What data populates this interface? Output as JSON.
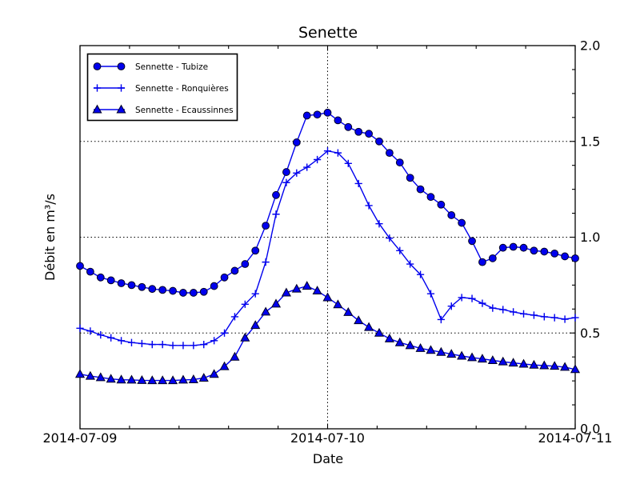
{
  "figure": {
    "background": "#ffffff",
    "colors": {
      "line": "#0000ee",
      "marker_edge": "#000022",
      "axis": "#000000",
      "grid": "#000000",
      "text": "#000000",
      "legend_bg": "#ffffff",
      "legend_border": "#000000"
    }
  },
  "legend": {
    "items": [
      {
        "label": "Sennette - Tubize",
        "marker": "circle"
      },
      {
        "label": "Sennette - Ronquières",
        "marker": "plus"
      },
      {
        "label": "Sennette - Ecaussinnes",
        "marker": "triangle"
      }
    ]
  },
  "chart_data": {
    "type": "line",
    "title": "Senette",
    "xlabel": "Date",
    "ylabel": "Débit en m³/s",
    "x_start": "2014-07-09 00:00",
    "x_step_hours": 1,
    "xlim_hours": [
      0,
      48
    ],
    "ylim": [
      0.0,
      2.0
    ],
    "x_major_hours": [
      0,
      24,
      48
    ],
    "x_tick_labels": [
      "2014-07-09",
      "2014-07-10",
      "2014-07-11"
    ],
    "x_minor_step_hours": 4.8,
    "y_major_ticks": [
      0.0,
      0.5,
      1.0,
      1.5,
      2.0
    ],
    "y_tick_labels": [
      "0.0",
      "0.5",
      "1.0",
      "1.5",
      "2.0"
    ],
    "y_minor_step": 0.125,
    "grid_y": [
      0.5,
      1.0,
      1.5
    ],
    "grid_x_hours": [
      24
    ],
    "legend_position": "upper-left",
    "x_hours": [
      0,
      1,
      2,
      3,
      4,
      5,
      6,
      7,
      8,
      9,
      10,
      11,
      12,
      13,
      14,
      15,
      16,
      17,
      18,
      19,
      20,
      21,
      22,
      23,
      24,
      25,
      26,
      27,
      28,
      29,
      30,
      31,
      32,
      33,
      34,
      35,
      36,
      37,
      38,
      39,
      40,
      41,
      42,
      43,
      44,
      45,
      46,
      47,
      48
    ],
    "series": [
      {
        "name": "Sennette - Tubize",
        "marker": "circle",
        "values": [
          0.85,
          0.82,
          0.79,
          0.775,
          0.76,
          0.75,
          0.74,
          0.73,
          0.725,
          0.72,
          0.71,
          0.71,
          0.715,
          0.745,
          0.79,
          0.825,
          0.86,
          0.93,
          1.06,
          1.22,
          1.34,
          1.495,
          1.635,
          1.64,
          1.65,
          1.61,
          1.575,
          1.55,
          1.54,
          1.5,
          1.44,
          1.39,
          1.31,
          1.25,
          1.21,
          1.17,
          1.115,
          1.075,
          0.98,
          0.87,
          0.89,
          0.945,
          0.95,
          0.945,
          0.93,
          0.925,
          0.915,
          0.9,
          0.89
        ]
      },
      {
        "name": "Sennette - Ronquières",
        "marker": "plus",
        "values": [
          0.525,
          0.51,
          0.49,
          0.475,
          0.46,
          0.45,
          0.445,
          0.44,
          0.44,
          0.435,
          0.435,
          0.435,
          0.44,
          0.46,
          0.5,
          0.585,
          0.65,
          0.705,
          0.87,
          1.12,
          1.285,
          1.335,
          1.365,
          1.405,
          1.45,
          1.44,
          1.385,
          1.28,
          1.165,
          1.07,
          0.995,
          0.93,
          0.86,
          0.805,
          0.705,
          0.57,
          0.64,
          0.685,
          0.68,
          0.655,
          0.63,
          0.622,
          0.61,
          0.6,
          0.593,
          0.585,
          0.58,
          0.572,
          0.58
        ]
      },
      {
        "name": "Sennette - Ecaussinnes",
        "marker": "triangle",
        "values": [
          0.285,
          0.275,
          0.268,
          0.26,
          0.256,
          0.255,
          0.253,
          0.252,
          0.252,
          0.252,
          0.255,
          0.257,
          0.265,
          0.285,
          0.325,
          0.375,
          0.475,
          0.54,
          0.61,
          0.652,
          0.71,
          0.73,
          0.745,
          0.72,
          0.685,
          0.648,
          0.608,
          0.565,
          0.53,
          0.5,
          0.47,
          0.45,
          0.435,
          0.42,
          0.41,
          0.4,
          0.39,
          0.38,
          0.372,
          0.365,
          0.357,
          0.35,
          0.344,
          0.338,
          0.333,
          0.33,
          0.327,
          0.322,
          0.31
        ]
      }
    ]
  }
}
